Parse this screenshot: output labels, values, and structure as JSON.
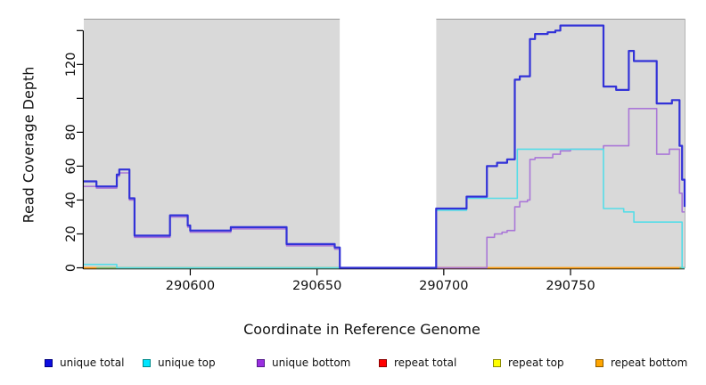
{
  "chart_data": {
    "type": "line",
    "subtype": "step-coverage-plot",
    "title": "",
    "xlabel": "Coordinate in Reference Genome",
    "ylabel": "Read Coverage Depth",
    "x_range": [
      290558,
      290795
    ],
    "y_range": [
      0,
      147
    ],
    "x_ticks": [
      290600,
      290650,
      290700,
      290750
    ],
    "y_ticks": [
      0,
      20,
      40,
      60,
      80,
      100,
      120,
      140
    ],
    "y_tick_labels_shown": [
      0,
      20,
      40,
      60,
      80,
      120
    ],
    "grid": false,
    "plot_bg_color": "#d9d9d9",
    "gap_region": {
      "from": 290659,
      "to": 290697,
      "color": "#ffffff"
    },
    "series": [
      {
        "name": "unique total",
        "color": "#3232d8",
        "width": 2.2,
        "points": [
          [
            290558,
            51
          ],
          [
            290563,
            48
          ],
          [
            290571,
            55
          ],
          [
            290572,
            58
          ],
          [
            290576,
            41
          ],
          [
            290578,
            19
          ],
          [
            290592,
            31
          ],
          [
            290599,
            25
          ],
          [
            290600,
            22
          ],
          [
            290616,
            24
          ],
          [
            290638,
            14
          ],
          [
            290657,
            12
          ],
          [
            290659,
            0
          ],
          [
            290697,
            35
          ],
          [
            290709,
            42
          ],
          [
            290717,
            60
          ],
          [
            290721,
            62
          ],
          [
            290725,
            64
          ],
          [
            290728,
            111
          ],
          [
            290730,
            113
          ],
          [
            290734,
            135
          ],
          [
            290736,
            138
          ],
          [
            290741,
            139
          ],
          [
            290744,
            140
          ],
          [
            290746,
            143
          ],
          [
            290763,
            107
          ],
          [
            290768,
            105
          ],
          [
            290773,
            128
          ],
          [
            290775,
            122
          ],
          [
            290784,
            97
          ],
          [
            290790,
            99
          ],
          [
            290793,
            72
          ],
          [
            290794,
            52
          ],
          [
            290795,
            36
          ]
        ]
      },
      {
        "name": "unique top",
        "color": "#55dde8",
        "width": 1.6,
        "points": [
          [
            290558,
            2
          ],
          [
            290571,
            0
          ],
          [
            290697,
            34
          ],
          [
            290709,
            41
          ],
          [
            290729,
            70
          ],
          [
            290763,
            35
          ],
          [
            290771,
            33
          ],
          [
            290775,
            27
          ],
          [
            290794,
            0
          ],
          [
            290795,
            0
          ]
        ]
      },
      {
        "name": "unique bottom",
        "color": "#aa77d8",
        "width": 1.6,
        "points": [
          [
            290558,
            48
          ],
          [
            290563,
            47
          ],
          [
            290571,
            54
          ],
          [
            290572,
            56
          ],
          [
            290576,
            40
          ],
          [
            290578,
            18
          ],
          [
            290592,
            30
          ],
          [
            290599,
            24
          ],
          [
            290600,
            21
          ],
          [
            290616,
            23
          ],
          [
            290638,
            13
          ],
          [
            290657,
            11
          ],
          [
            290659,
            0
          ],
          [
            290717,
            18
          ],
          [
            290720,
            20
          ],
          [
            290723,
            21
          ],
          [
            290725,
            22
          ],
          [
            290728,
            36
          ],
          [
            290730,
            39
          ],
          [
            290733,
            40
          ],
          [
            290734,
            64
          ],
          [
            290736,
            65
          ],
          [
            290743,
            67
          ],
          [
            290746,
            69
          ],
          [
            290750,
            70
          ],
          [
            290763,
            72
          ],
          [
            290773,
            94
          ],
          [
            290784,
            67
          ],
          [
            290789,
            70
          ],
          [
            290793,
            44
          ],
          [
            290794,
            33
          ],
          [
            290795,
            33
          ]
        ]
      },
      {
        "name": "repeat total",
        "color": "#cc4455",
        "width": 1.8,
        "points": [
          [
            290697,
            0
          ],
          [
            290717,
            0
          ]
        ]
      },
      {
        "name": "repeat top",
        "color": "#ffef00",
        "width": 1.6,
        "points": [
          [
            290558,
            0
          ],
          [
            290795,
            0
          ]
        ]
      },
      {
        "name": "repeat bottom",
        "color": "#ff9e1b",
        "width": 1.8,
        "points": [
          [
            290558,
            0
          ],
          [
            290795,
            0
          ]
        ]
      }
    ],
    "baseline_overlap_segments": [
      {
        "from": 290563,
        "to": 290659,
        "depth": 0,
        "color": "#7cc87c"
      },
      {
        "from": 290793,
        "to": 290795,
        "depth": 0,
        "color": "#7cc87c"
      }
    ],
    "legend": {
      "position": "bottom",
      "items": [
        {
          "label": "unique total",
          "fill": "#0d0de0",
          "border": "#000080"
        },
        {
          "label": "unique top",
          "fill": "#00e5ff",
          "border": "#008b8b"
        },
        {
          "label": "unique bottom",
          "fill": "#9a2fe0",
          "border": "#551a8b"
        },
        {
          "label": "repeat total",
          "fill": "#ff0000",
          "border": "#8b0000"
        },
        {
          "label": "repeat top",
          "fill": "#ffff00",
          "border": "#8b8b00"
        },
        {
          "label": "repeat bottom",
          "fill": "#ffa500",
          "border": "#8b5a00"
        }
      ]
    }
  }
}
